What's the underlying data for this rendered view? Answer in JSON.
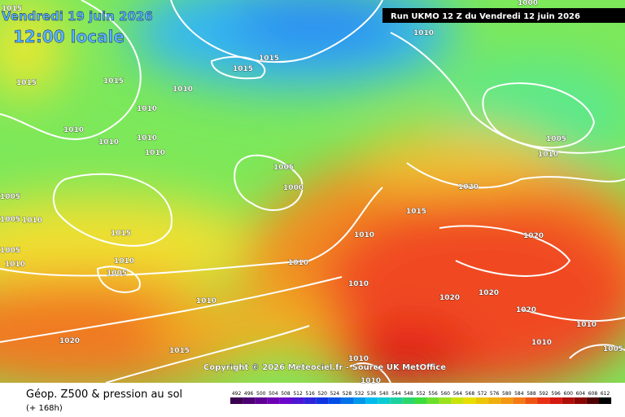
{
  "header": {
    "valid_date": "Vendredi 19 juin 2026",
    "local_time": "12:00 locale",
    "run": "Run UKMO 12 Z du Vendredi 12 juin 2026"
  },
  "copyright": "Copyright © 2026 Meteociel.fr - Source UK MetOffice",
  "footer": {
    "title": "Géop. Z500 & pression au sol",
    "lead": "(+ 168h)"
  },
  "isobar_labels": [
    "1010",
    "1015",
    "1015",
    "1015",
    "1015",
    "1010",
    "1010",
    "1010",
    "1010",
    "1010",
    "1010",
    "1005",
    "1000",
    "1005",
    "1005",
    "1010",
    "1015",
    "1005",
    "1010",
    "1010",
    "1005",
    "1010",
    "1010",
    "1020",
    "1015",
    "1010",
    "1015",
    "1020",
    "1010",
    "1020",
    "1020",
    "1020",
    "1020",
    "1005",
    "1010",
    "1000",
    "1010",
    "1010",
    "1005",
    "1015",
    "1010",
    "1010"
  ],
  "legend": {
    "values": [
      492,
      496,
      500,
      504,
      508,
      512,
      516,
      520,
      524,
      528,
      532,
      536,
      540,
      544,
      548,
      552,
      556,
      560,
      564,
      568,
      572,
      576,
      580,
      584,
      588,
      592,
      596,
      600,
      604,
      608,
      612
    ]
  }
}
